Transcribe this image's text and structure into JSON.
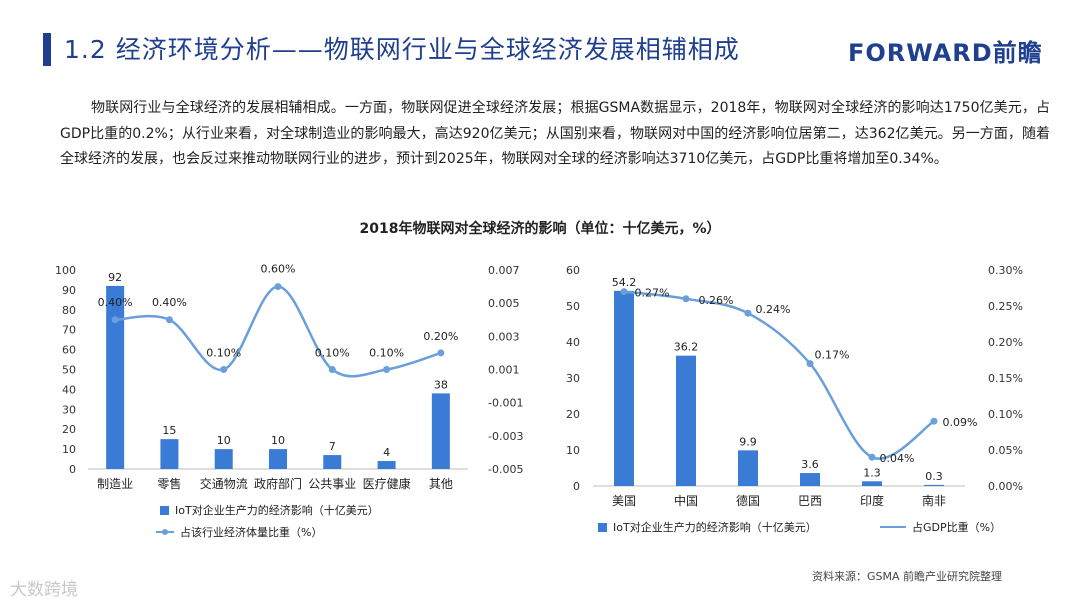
{
  "header": {
    "title": "1.2 经济环境分析——物联网行业与全球经济发展相辅相成",
    "logo": "FORWARD前瞻"
  },
  "paragraph": "物联网行业与全球经济的发展相辅相成。一方面，物联网促进全球经济发展；根据GSMA数据显示，2018年，物联网对全球经济的影响达1750亿美元，占GDP比重的0.2%；从行业来看，对全球制造业的影响最大，高达920亿美元；从国别来看，物联网对中国的经济影响位居第二，达362亿美元。另一方面，随着全球经济的发展，也会反过来推动物联网行业的进步，预计到2025年，物联网对全球的经济影响达3710亿美元，占GDP比重将增加至0.34%。",
  "chart_title": "2018年物联网对全球经济的影响（单位：十亿美元，%）",
  "source": "资料来源：GSMA 前瞻产业研究院整理",
  "watermark": "大数跨境",
  "colors": {
    "bar": "#3a7bd5",
    "line": "#6a9fdc",
    "title": "#1f3f8f"
  },
  "chart_data": [
    {
      "type": "bar+line",
      "categories": [
        "制造业",
        "零售",
        "交通物流",
        "政府部门",
        "公共事业",
        "医疗健康",
        "其他"
      ],
      "series": [
        {
          "name": "IoT对企业生产力的经济影响（十亿美元）",
          "type": "bar",
          "values": [
            92,
            15,
            10,
            10,
            7,
            4,
            38
          ],
          "labels": [
            "92",
            "15",
            "10",
            "10",
            "7",
            "4",
            "38"
          ]
        },
        {
          "name": "占该行业经济体量比重（%）",
          "type": "line",
          "axis": "right",
          "values": [
            0.004,
            0.004,
            0.001,
            0.006,
            0.001,
            0.001,
            0.002
          ],
          "labels": [
            "0.40%",
            "0.40%",
            "0.10%",
            "0.60%",
            "0.10%",
            "0.10%",
            "0.20%"
          ]
        }
      ],
      "ylim": [
        0,
        100
      ],
      "yticks": [
        "0",
        "10",
        "20",
        "30",
        "40",
        "50",
        "60",
        "70",
        "80",
        "90",
        "100"
      ],
      "y2lim": [
        -0.005,
        0.007
      ],
      "y2ticks": [
        "-0.005",
        "-0.003",
        "-0.001",
        "0.001",
        "0.003",
        "0.005",
        "0.007"
      ],
      "legend_position": "bottom"
    },
    {
      "type": "bar+line",
      "categories": [
        "美国",
        "中国",
        "德国",
        "巴西",
        "印度",
        "南非"
      ],
      "series": [
        {
          "name": "IoT对企业生产力的经济影响（十亿美元）",
          "type": "bar",
          "values": [
            54.2,
            36.2,
            9.9,
            3.6,
            1.3,
            0.3
          ],
          "labels": [
            "54.2",
            "36.2",
            "9.9",
            "3.6",
            "1.3",
            "0.3"
          ]
        },
        {
          "name": "占GDP比重（%）",
          "type": "line",
          "axis": "right",
          "values": [
            0.27,
            0.26,
            0.24,
            0.17,
            0.04,
            0.09
          ],
          "labels": [
            "0.27%",
            "0.26%",
            "0.24%",
            "0.17%",
            "0.04%",
            "0.09%"
          ]
        }
      ],
      "ylim": [
        0,
        60
      ],
      "yticks": [
        "0",
        "10",
        "20",
        "30",
        "40",
        "50",
        "60"
      ],
      "y2lim": [
        0,
        0.3
      ],
      "y2ticks": [
        "0.00%",
        "0.05%",
        "0.10%",
        "0.15%",
        "0.20%",
        "0.25%",
        "0.30%"
      ],
      "legend_position": "bottom"
    }
  ]
}
